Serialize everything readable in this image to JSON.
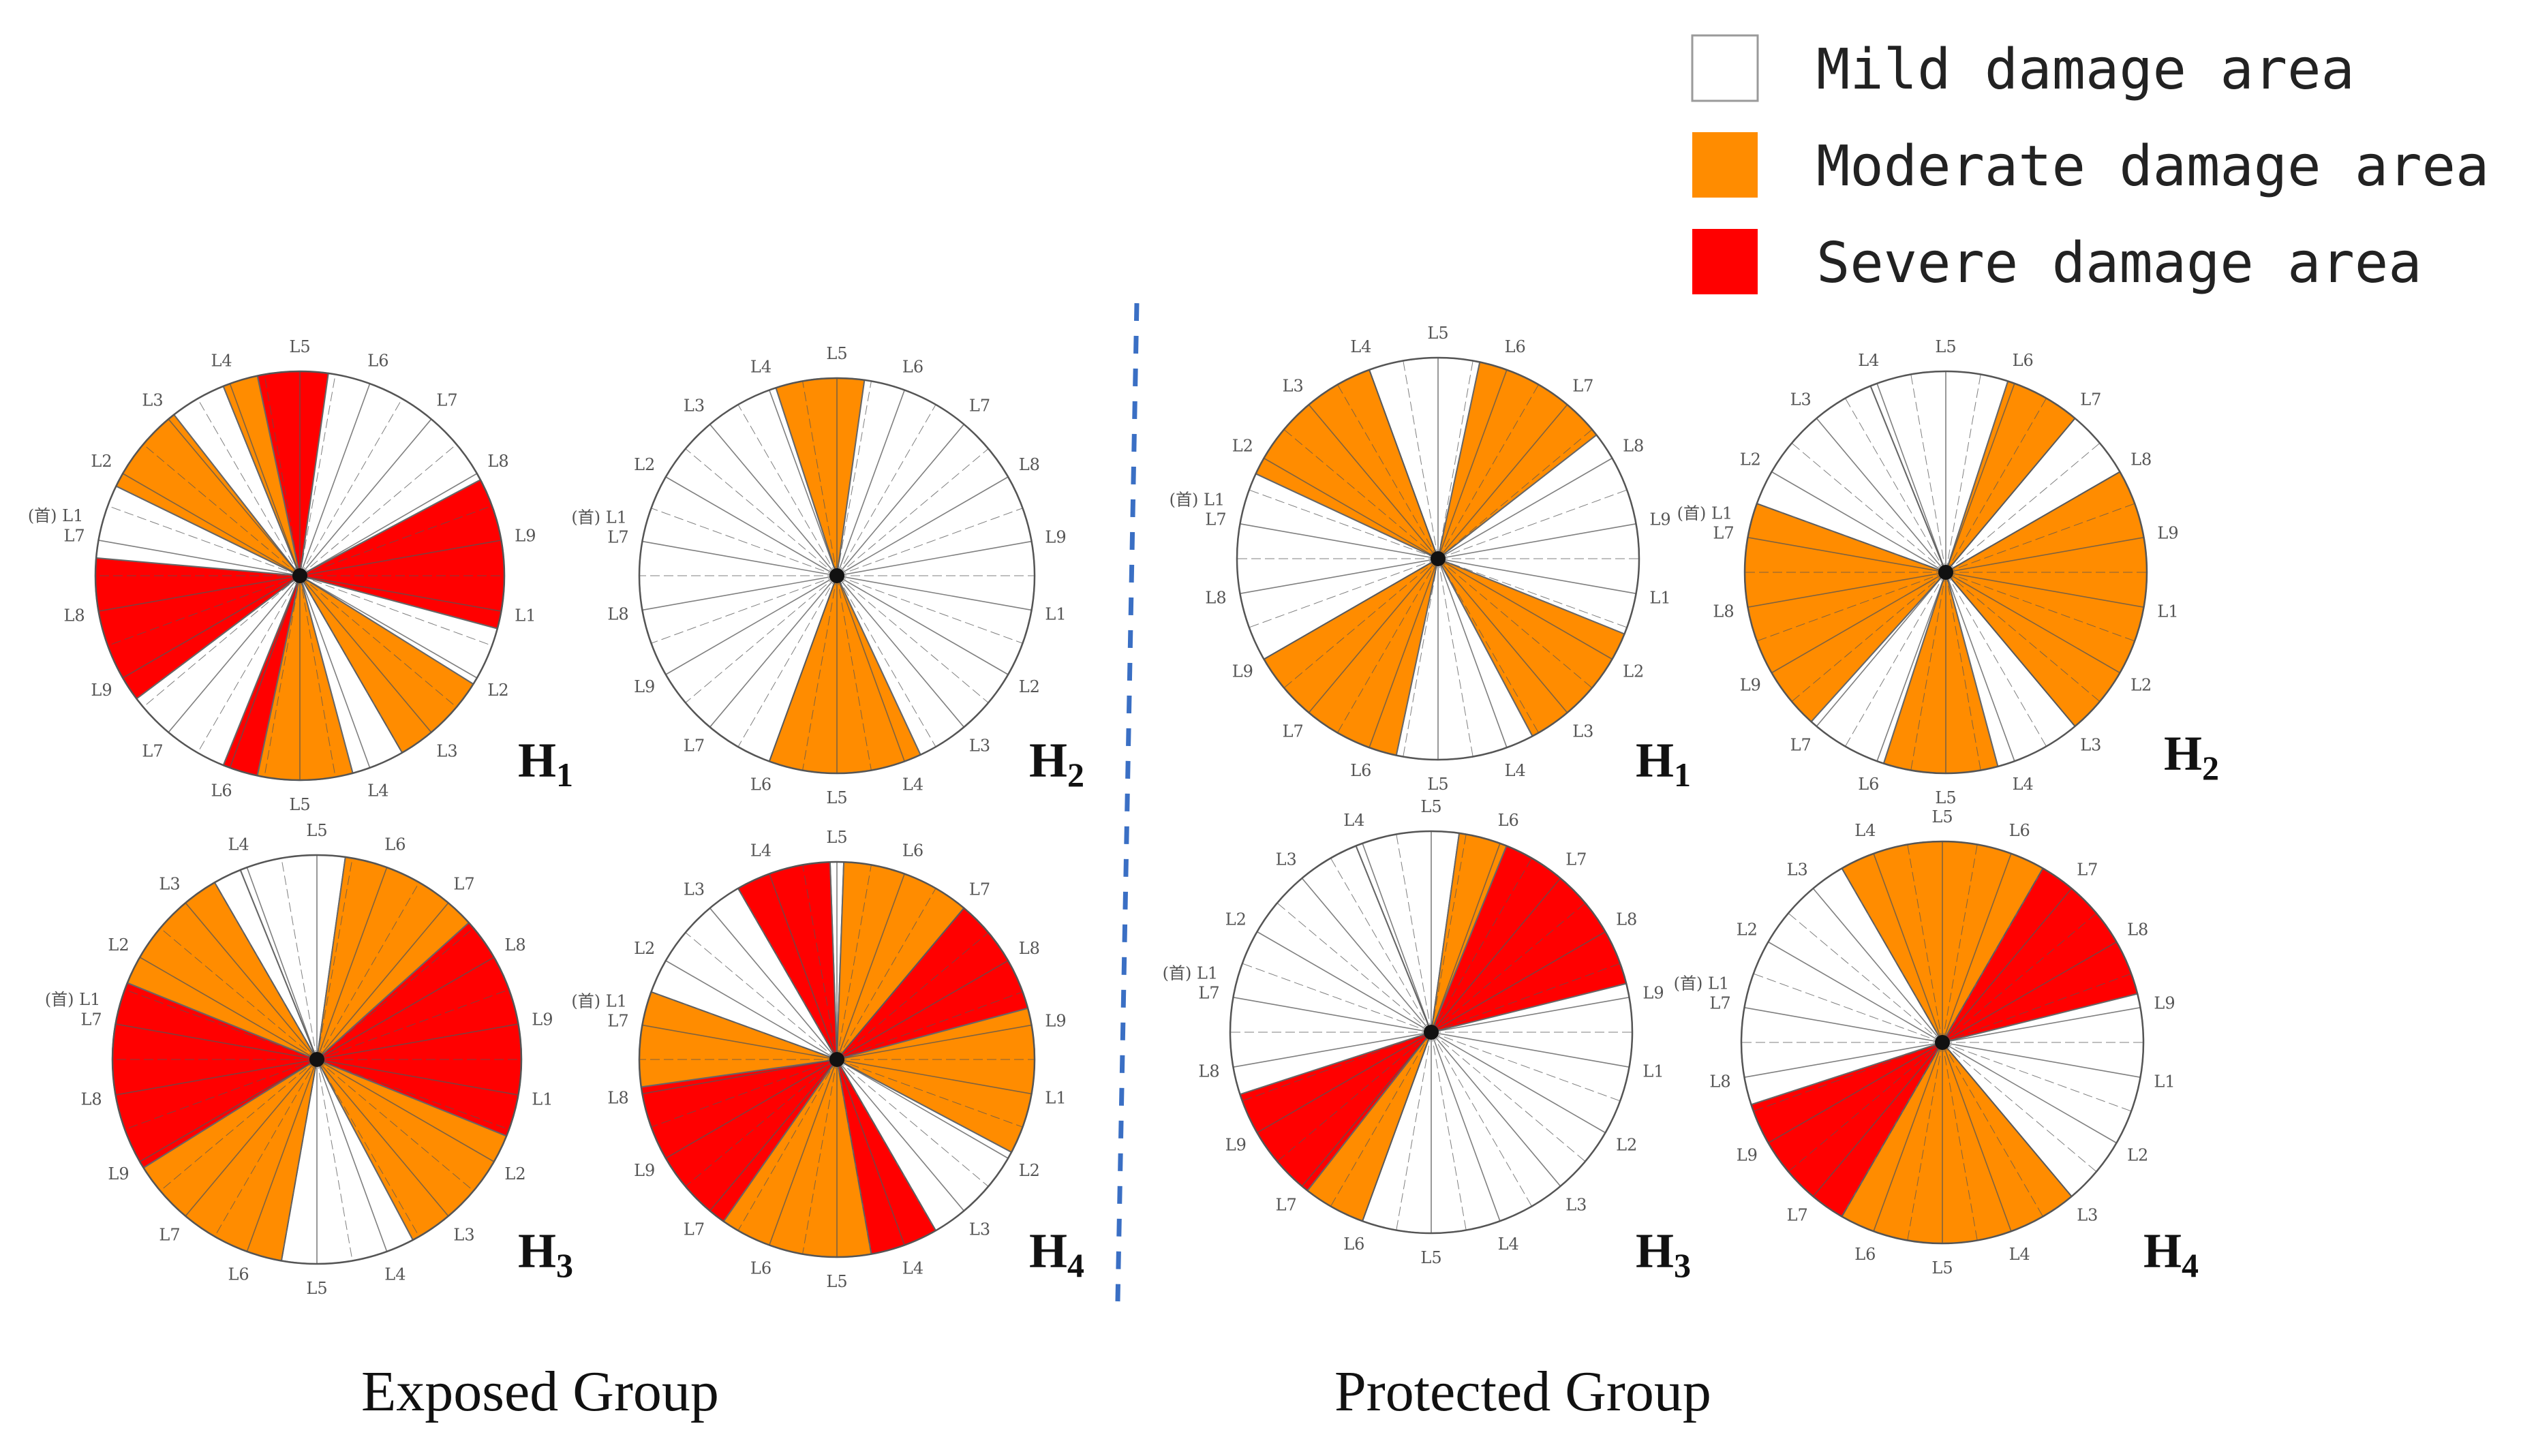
{
  "legend": {
    "mild": "Mild damage area",
    "moderate": "Moderate damage area",
    "severe": "Severe damage area"
  },
  "colors": {
    "mild": "#ffffff",
    "moderate": "#ff8c00",
    "severe": "#ff0000",
    "divider": "#3a6fc4",
    "stroke": "#555555"
  },
  "groups": {
    "exposed": {
      "label": "Exposed Group"
    },
    "protected": {
      "label": "Protected Group"
    }
  },
  "ring_labels": [
    "L5",
    "L6",
    "L7",
    "L8",
    "L9",
    "L1",
    "L2",
    "L3",
    "L4",
    "L5",
    "L6",
    "L7",
    "L9",
    "L8",
    "L7",
    "L2",
    "L3",
    "L4"
  ],
  "ring_label_left": "(首) L1",
  "wheels": [
    {
      "id": "exposed-h1",
      "group": "exposed",
      "label": "H",
      "sub": "1",
      "sectors": [
        [
          "severe",
          -12,
          8
        ],
        [
          "mild",
          8,
          62
        ],
        [
          "severe",
          62,
          105
        ],
        [
          "mild",
          105,
          122
        ],
        [
          "moderate",
          122,
          150
        ],
        [
          "mild",
          150,
          165
        ],
        [
          "moderate",
          165,
          192
        ],
        [
          "severe",
          192,
          202
        ],
        [
          "mild",
          202,
          233
        ],
        [
          "severe",
          233,
          275
        ],
        [
          "mild",
          275,
          296
        ],
        [
          "moderate",
          296,
          322
        ],
        [
          "mild",
          322,
          338
        ],
        [
          "moderate",
          338,
          348
        ]
      ]
    },
    {
      "id": "exposed-h2",
      "group": "exposed",
      "label": "H",
      "sub": "2",
      "sectors": [
        [
          "moderate",
          -18,
          8
        ],
        [
          "mild",
          8,
          155
        ],
        [
          "moderate",
          155,
          200
        ],
        [
          "mild",
          200,
          342
        ]
      ]
    },
    {
      "id": "exposed-h3",
      "group": "exposed",
      "label": "H",
      "sub": "3",
      "sectors": [
        [
          "mild",
          -22,
          8
        ],
        [
          "moderate",
          8,
          48
        ],
        [
          "severe",
          48,
          112
        ],
        [
          "moderate",
          112,
          152
        ],
        [
          "mild",
          152,
          190
        ],
        [
          "moderate",
          190,
          238
        ],
        [
          "severe",
          238,
          292
        ],
        [
          "moderate",
          292,
          330
        ],
        [
          "mild",
          330,
          338
        ]
      ]
    },
    {
      "id": "exposed-h4",
      "group": "exposed",
      "label": "H",
      "sub": "4",
      "sectors": [
        [
          "mild",
          -2,
          2
        ],
        [
          "moderate",
          2,
          40
        ],
        [
          "severe",
          40,
          75
        ],
        [
          "moderate",
          75,
          118
        ],
        [
          "mild",
          118,
          150
        ],
        [
          "severe",
          150,
          170
        ],
        [
          "moderate",
          170,
          215
        ],
        [
          "severe",
          215,
          262
        ],
        [
          "moderate",
          262,
          290
        ],
        [
          "mild",
          290,
          330
        ],
        [
          "severe",
          330,
          358
        ]
      ]
    },
    {
      "id": "protected-h1",
      "group": "protected",
      "label": "H",
      "sub": "1",
      "sectors": [
        [
          "mild",
          -20,
          12
        ],
        [
          "moderate",
          12,
          52
        ],
        [
          "mild",
          52,
          112
        ],
        [
          "moderate",
          112,
          152
        ],
        [
          "mild",
          152,
          192
        ],
        [
          "moderate",
          192,
          240
        ],
        [
          "mild",
          240,
          295
        ],
        [
          "moderate",
          295,
          340
        ]
      ]
    },
    {
      "id": "protected-h2",
      "group": "protected",
      "label": "H",
      "sub": "2",
      "sectors": [
        [
          "mild",
          -22,
          18
        ],
        [
          "moderate",
          18,
          40
        ],
        [
          "mild",
          40,
          60
        ],
        [
          "moderate",
          60,
          140
        ],
        [
          "mild",
          140,
          165
        ],
        [
          "moderate",
          165,
          198
        ],
        [
          "mild",
          198,
          222
        ],
        [
          "moderate",
          222,
          290
        ],
        [
          "mild",
          290,
          338
        ]
      ]
    },
    {
      "id": "protected-h3",
      "group": "protected",
      "label": "H",
      "sub": "3",
      "sectors": [
        [
          "mild",
          -22,
          8
        ],
        [
          "moderate",
          8,
          22
        ],
        [
          "severe",
          22,
          76
        ],
        [
          "mild",
          76,
          200
        ],
        [
          "moderate",
          200,
          218
        ],
        [
          "severe",
          218,
          252
        ],
        [
          "mild",
          252,
          338
        ]
      ]
    },
    {
      "id": "protected-h4",
      "group": "protected",
      "label": "H",
      "sub": "4",
      "sectors": [
        [
          "moderate",
          -30,
          30
        ],
        [
          "severe",
          30,
          76
        ],
        [
          "mild",
          76,
          140
        ],
        [
          "moderate",
          140,
          210
        ],
        [
          "severe",
          210,
          252
        ],
        [
          "mild",
          252,
          330
        ]
      ]
    }
  ]
}
